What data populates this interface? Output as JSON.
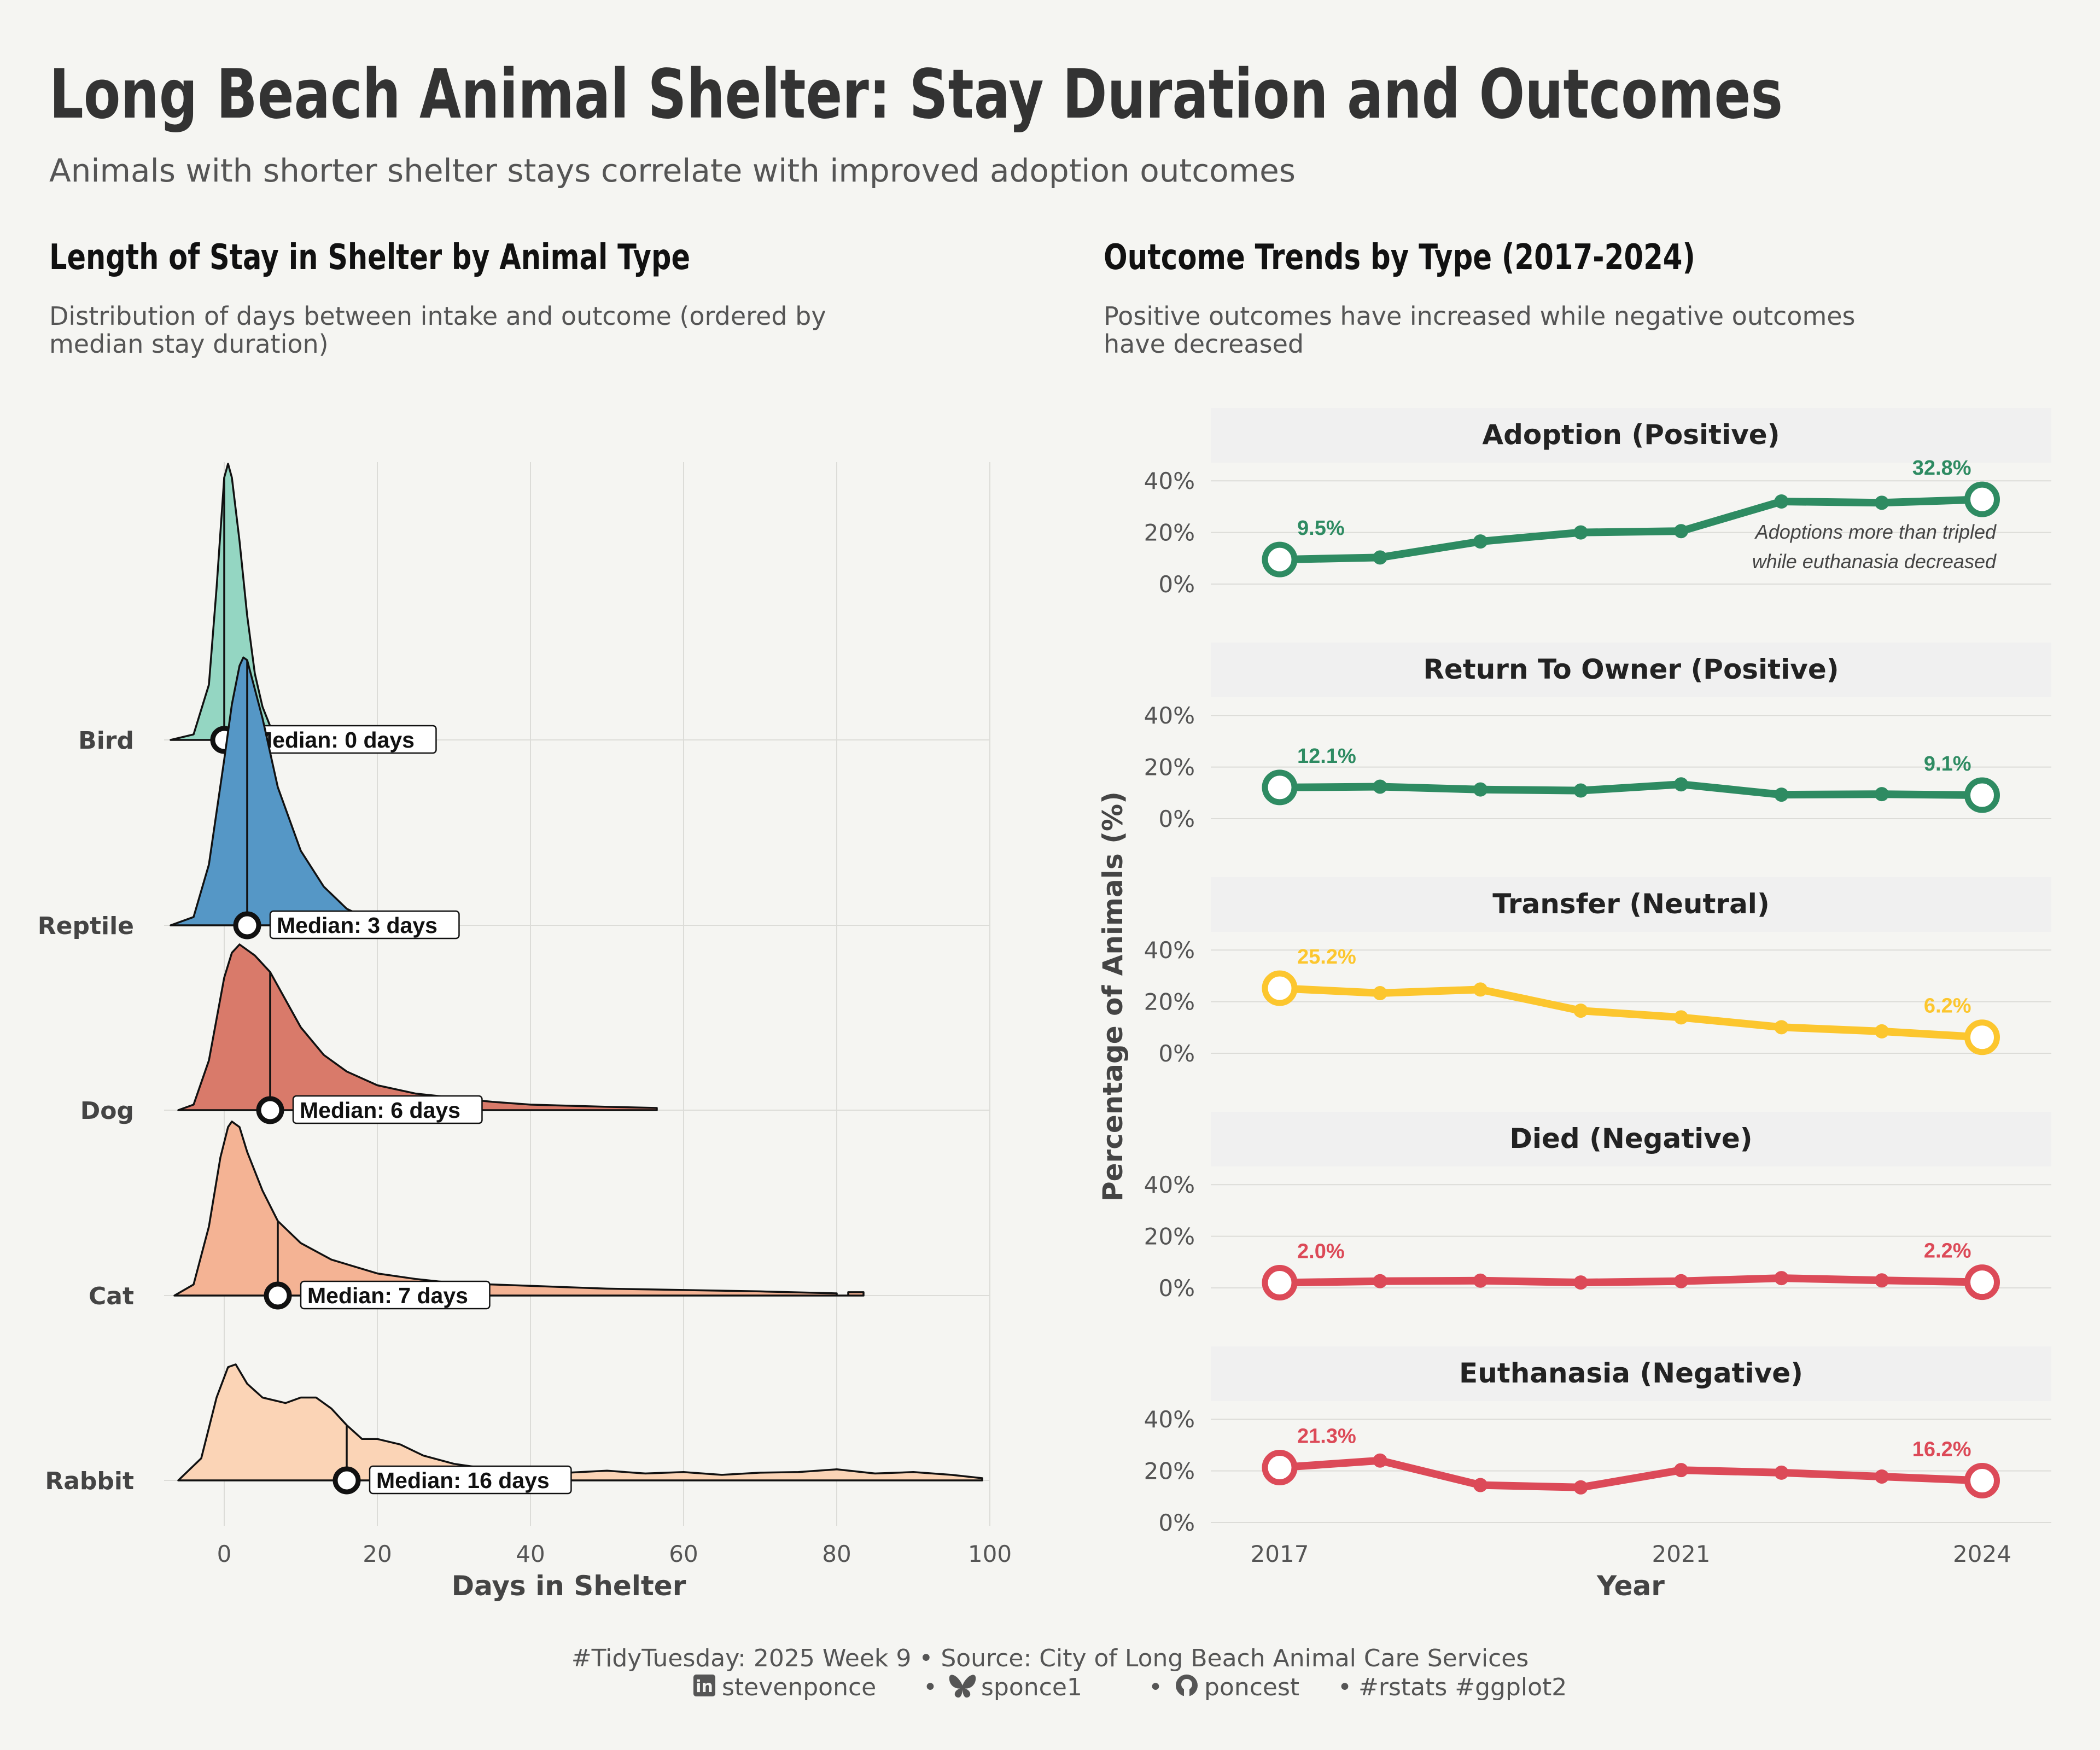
{
  "title": "Long Beach Animal Shelter: Stay Duration and Outcomes",
  "subtitle": "Animals with shorter shelter stays correlate with improved adoption outcomes",
  "caption": {
    "line1": "#TidyTuesday: 2025 Week 9 • Source: City of Long Beach Animal Care Services",
    "handles": {
      "linkedin": "stevenponce",
      "bluesky": "sponce1",
      "github": "poncest",
      "tags": "#rstats #ggplot2"
    }
  },
  "chart_data": [
    {
      "type": "area",
      "subtype": "ridgeline",
      "title": "Length of Stay in Shelter by Animal Type",
      "subtitle_line1": "Distribution of days between intake and outcome (ordered by",
      "subtitle_line2": "median stay duration)",
      "xlabel": "Days in Shelter",
      "ylabel": "",
      "xlim": [
        -7,
        101
      ],
      "xticks": [
        0,
        20,
        40,
        60,
        80,
        100
      ],
      "grid": true,
      "categories": [
        "Bird",
        "Reptile",
        "Dog",
        "Cat",
        "Rabbit"
      ],
      "series": [
        {
          "name": "Bird",
          "median": 0,
          "median_label": "Median: 0 days",
          "color": "#94d6c2",
          "density_points": [
            [
              -7,
              0
            ],
            [
              -4,
              0.02
            ],
            [
              -2,
              0.2
            ],
            [
              -1,
              0.55
            ],
            [
              0,
              0.95
            ],
            [
              0.5,
              1.0
            ],
            [
              1,
              0.95
            ],
            [
              2,
              0.72
            ],
            [
              3,
              0.45
            ],
            [
              4,
              0.24
            ],
            [
              5,
              0.12
            ],
            [
              6,
              0.05
            ],
            [
              7,
              0.02
            ],
            [
              8,
              0
            ]
          ]
        },
        {
          "name": "Reptile",
          "median": 3,
          "median_label": "Median: 3 days",
          "color": "#5597c6",
          "density_points": [
            [
              -7,
              0
            ],
            [
              -4,
              0.03
            ],
            [
              -2,
              0.22
            ],
            [
              0,
              0.6
            ],
            [
              1,
              0.8
            ],
            [
              2,
              0.94
            ],
            [
              2.5,
              0.97
            ],
            [
              3,
              0.96
            ],
            [
              5,
              0.75
            ],
            [
              7,
              0.5
            ],
            [
              10,
              0.27
            ],
            [
              13,
              0.14
            ],
            [
              16,
              0.06
            ],
            [
              19,
              0.02
            ],
            [
              22,
              0
            ]
          ]
        },
        {
          "name": "Dog",
          "median": 6,
          "median_label": "Median: 6 days",
          "color": "#d97a6a",
          "density_points": [
            [
              -6,
              0
            ],
            [
              -4,
              0.02
            ],
            [
              -2,
              0.18
            ],
            [
              0,
              0.48
            ],
            [
              1,
              0.57
            ],
            [
              2,
              0.6
            ],
            [
              4,
              0.56
            ],
            [
              6,
              0.5
            ],
            [
              8,
              0.4
            ],
            [
              10,
              0.3
            ],
            [
              13,
              0.2
            ],
            [
              16,
              0.14
            ],
            [
              20,
              0.09
            ],
            [
              25,
              0.06
            ],
            [
              30,
              0.045
            ],
            [
              35,
              0.03
            ],
            [
              40,
              0.02
            ],
            [
              45,
              0.016
            ],
            [
              50,
              0.012
            ],
            [
              56.5,
              0.008
            ],
            [
              56.5,
              0
            ]
          ]
        },
        {
          "name": "Cat",
          "median": 7,
          "median_label": "Median: 7 days",
          "color": "#f4b394",
          "density_points": [
            [
              -6.5,
              0
            ],
            [
              -4,
              0.04
            ],
            [
              -2,
              0.25
            ],
            [
              -0.5,
              0.5
            ],
            [
              0.5,
              0.61
            ],
            [
              1,
              0.63
            ],
            [
              2,
              0.61
            ],
            [
              3,
              0.52
            ],
            [
              5,
              0.38
            ],
            [
              7,
              0.27
            ],
            [
              10,
              0.19
            ],
            [
              14,
              0.13
            ],
            [
              20,
              0.08
            ],
            [
              25,
              0.06
            ],
            [
              30,
              0.045
            ],
            [
              40,
              0.035
            ],
            [
              50,
              0.025
            ],
            [
              60,
              0.02
            ],
            [
              70,
              0.015
            ],
            [
              80,
              0.008
            ],
            [
              80,
              0
            ],
            [
              81.5,
              0
            ],
            [
              81.5,
              0.012
            ],
            [
              83.5,
              0.012
            ],
            [
              83.5,
              0
            ]
          ]
        },
        {
          "name": "Rabbit",
          "median": 16,
          "median_label": "Median: 16 days",
          "color": "#fbd4b6",
          "density_points": [
            [
              -6,
              0
            ],
            [
              -3,
              0.08
            ],
            [
              -1,
              0.3
            ],
            [
              0.5,
              0.41
            ],
            [
              1.5,
              0.42
            ],
            [
              3,
              0.35
            ],
            [
              5,
              0.3
            ],
            [
              8,
              0.28
            ],
            [
              10,
              0.3
            ],
            [
              12,
              0.3
            ],
            [
              14,
              0.26
            ],
            [
              16,
              0.2
            ],
            [
              18,
              0.15
            ],
            [
              20,
              0.15
            ],
            [
              23,
              0.13
            ],
            [
              26,
              0.09
            ],
            [
              30,
              0.06
            ],
            [
              35,
              0.04
            ],
            [
              40,
              0.033
            ],
            [
              45,
              0.028
            ],
            [
              50,
              0.035
            ],
            [
              55,
              0.025
            ],
            [
              60,
              0.03
            ],
            [
              65,
              0.02
            ],
            [
              70,
              0.028
            ],
            [
              75,
              0.03
            ],
            [
              80,
              0.04
            ],
            [
              85,
              0.025
            ],
            [
              90,
              0.03
            ],
            [
              95,
              0.02
            ],
            [
              99,
              0.008
            ],
            [
              99,
              0
            ]
          ]
        }
      ]
    },
    {
      "type": "line",
      "subtype": "faceted",
      "title": "Outcome Trends by Type (2017-2024)",
      "subtitle_line1": "Positive outcomes have increased while negative outcomes",
      "subtitle_line2": "have decreased",
      "xlabel": "Year",
      "ylabel": "Percentage of Animals (%)",
      "x": [
        2017,
        2018,
        2019,
        2020,
        2021,
        2022,
        2023,
        2024
      ],
      "xticks": [
        2017,
        2021,
        2024
      ],
      "xlim": [
        2016.35,
        2024.7
      ],
      "ylim": [
        0,
        40
      ],
      "yticks": [
        0,
        20,
        40
      ],
      "ytick_labels": [
        "0%",
        "20%",
        "40%"
      ],
      "grid": true,
      "annotation_line1": "Adoptions more than tripled",
      "annotation_line2": "while euthanasia decreased",
      "facets": [
        {
          "name": "Adoption (Positive)",
          "color": "#2e8b62",
          "values": [
            9.5,
            10.3,
            16.5,
            20.0,
            20.5,
            32.0,
            31.5,
            32.8
          ],
          "start_label": "9.5%",
          "end_label": "32.8%"
        },
        {
          "name": "Return To Owner (Positive)",
          "color": "#2e8b62",
          "values": [
            12.1,
            12.4,
            11.3,
            10.9,
            13.3,
            9.3,
            9.5,
            9.1
          ],
          "start_label": "12.1%",
          "end_label": "9.1%"
        },
        {
          "name": "Transfer (Neutral)",
          "color": "#fcc62e",
          "values": [
            25.2,
            23.3,
            24.7,
            16.5,
            13.9,
            10.1,
            8.5,
            6.2
          ],
          "start_label": "25.2%",
          "end_label": "6.2%"
        },
        {
          "name": "Died (Negative)",
          "color": "#dc4a58",
          "values": [
            2.0,
            2.6,
            2.8,
            2.1,
            2.6,
            3.8,
            2.9,
            2.2
          ],
          "start_label": "2.0%",
          "end_label": "2.2%"
        },
        {
          "name": "Euthanasia (Negative)",
          "color": "#dc4a58",
          "values": [
            21.3,
            24.0,
            14.5,
            13.6,
            20.3,
            19.3,
            17.8,
            16.2
          ],
          "start_label": "21.3%",
          "end_label": "16.2%"
        }
      ]
    }
  ]
}
